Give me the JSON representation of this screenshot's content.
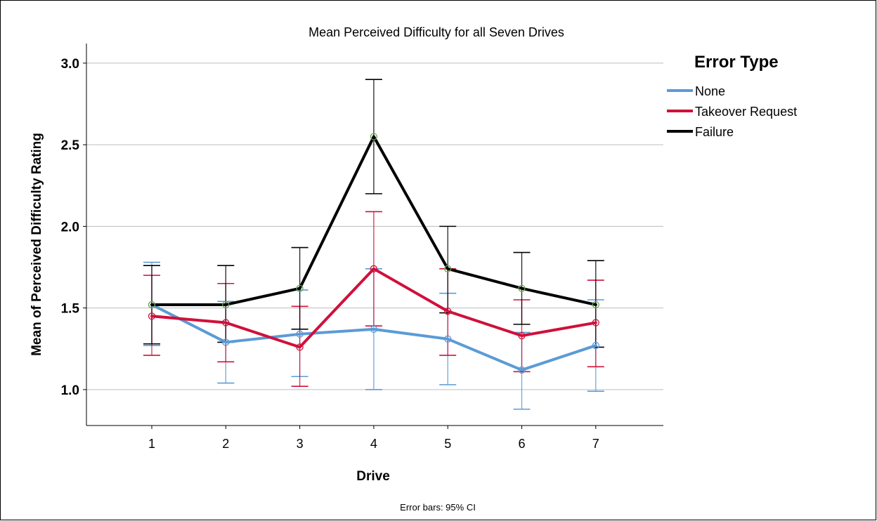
{
  "chart_data": {
    "type": "line",
    "title": "Mean Perceived Difficulty for all Seven Drives",
    "xlabel": "Drive",
    "ylabel": "Mean of Perceived Difficulty Rating",
    "footnote": "Error bars: 95% CI",
    "categories": [
      "1",
      "2",
      "3",
      "4",
      "5",
      "6",
      "7"
    ],
    "y_ticks": [
      "1.0",
      "1.5",
      "2.0",
      "2.5",
      "3.0"
    ],
    "ylim": [
      0.78,
      3.12
    ],
    "grid": "horizontal",
    "legend": {
      "title": "Error Type",
      "placement": "right"
    },
    "series": [
      {
        "name": "None",
        "color": "#5b9bd5",
        "values": [
          1.52,
          1.29,
          1.34,
          1.37,
          1.31,
          1.12,
          1.27
        ],
        "ci_low": [
          1.27,
          1.04,
          1.08,
          1.0,
          1.03,
          0.88,
          0.99
        ],
        "ci_high": [
          1.78,
          1.54,
          1.61,
          1.74,
          1.59,
          1.35,
          1.55
        ]
      },
      {
        "name": "Takeover Request",
        "color": "#d0103a",
        "values": [
          1.45,
          1.41,
          1.26,
          1.74,
          1.48,
          1.33,
          1.41
        ],
        "ci_low": [
          1.21,
          1.17,
          1.02,
          1.39,
          1.21,
          1.11,
          1.14
        ],
        "ci_high": [
          1.7,
          1.65,
          1.51,
          2.09,
          1.74,
          1.55,
          1.67
        ]
      },
      {
        "name": "Failure",
        "color": "#000000",
        "marker_color": "#6aaa50",
        "values": [
          1.52,
          1.52,
          1.62,
          2.55,
          1.74,
          1.62,
          1.52
        ],
        "ci_low": [
          1.28,
          1.29,
          1.37,
          2.2,
          1.47,
          1.4,
          1.26
        ],
        "ci_high": [
          1.76,
          1.76,
          1.87,
          2.9,
          2.0,
          1.84,
          1.79
        ]
      }
    ]
  }
}
